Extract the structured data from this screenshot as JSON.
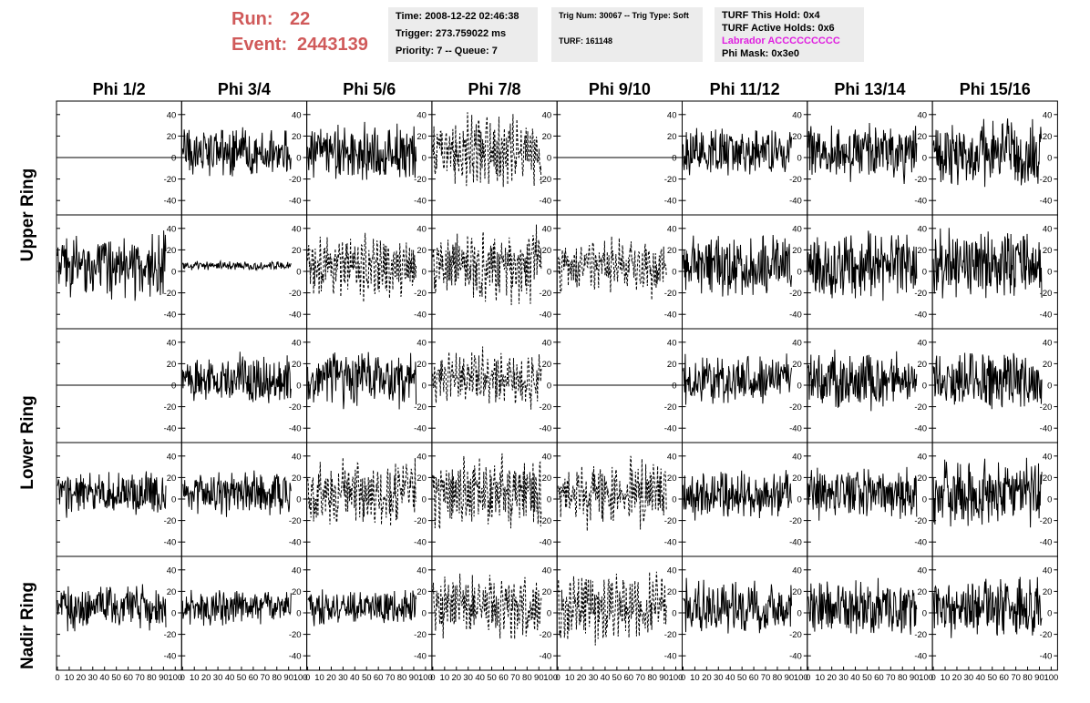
{
  "header": {
    "run_label": "Run:",
    "run_value": "22",
    "event_label": "Event:",
    "event_value": "2443139",
    "label_color": "#d05a5a"
  },
  "time_box": {
    "time": "Time: 2008-12-22 02:46:38",
    "trigger": "Trigger: 273.759022 ms",
    "priority": "Priority: 7 -- Queue: 7"
  },
  "trig_box": {
    "trig": "Trig Num: 30067 -- Trig Type: Soft",
    "turf": "TURF: 161148"
  },
  "turf_box": {
    "this_hold": "TURF This Hold: 0x4",
    "active_holds": "TURF Active Holds: 0x6",
    "labrador": "Labrador ACCCCCCCCC",
    "labrador_color": "#e020e0",
    "phi_mask": "Phi Mask: 0x3e0"
  },
  "chart_data": {
    "type": "line",
    "title": "",
    "columns": [
      "Phi 1/2",
      "Phi 3/4",
      "Phi 5/6",
      "Phi 7/8",
      "Phi 9/10",
      "Phi 11/12",
      "Phi 13/14",
      "Phi 15/16"
    ],
    "rows": [
      "Upper Ring",
      "Upper Ring",
      "Lower Ring",
      "Lower Ring",
      "Nadir Ring"
    ],
    "row_labels": [
      "Upper Ring",
      "Lower Ring",
      "Nadir Ring"
    ],
    "xlim": [
      0,
      100
    ],
    "ylim": [
      -50,
      50
    ],
    "x_ticks": [
      0,
      10,
      20,
      30,
      40,
      50,
      60,
      70,
      80,
      90,
      100
    ],
    "y_ticks": [
      -40,
      -20,
      0,
      20,
      40
    ],
    "x_tick_labels": [
      "0",
      "10",
      "20",
      "30",
      "40",
      "50",
      "60",
      "70",
      "80",
      "90",
      "100"
    ],
    "y_tick_labels": [
      "-40",
      "-20",
      "0",
      "20",
      "40"
    ],
    "note_amplitude_semantics": "each cell is a waveform trace; amp = approximate peak amplitude in mV-like units, flat = trace is a constant zero line, dashed = trace drawn with dashed style",
    "cells": [
      [
        {
          "style": "flat",
          "amp": 0
        },
        {
          "style": "solid",
          "amp": 22
        },
        {
          "style": "solid",
          "amp": 25
        },
        {
          "style": "dashed",
          "amp": 28
        },
        {
          "style": "flat",
          "amp": 0
        },
        {
          "style": "solid",
          "amp": 22
        },
        {
          "style": "solid",
          "amp": 25
        },
        {
          "style": "solid",
          "amp": 30
        }
      ],
      [
        {
          "style": "solid",
          "amp": 28
        },
        {
          "style": "solid",
          "amp": 4
        },
        {
          "style": "dashed",
          "amp": 25
        },
        {
          "style": "dashed",
          "amp": 32
        },
        {
          "style": "dashed",
          "amp": 22
        },
        {
          "style": "solid",
          "amp": 28
        },
        {
          "style": "solid",
          "amp": 30
        },
        {
          "style": "solid",
          "amp": 32
        }
      ],
      [
        {
          "style": "flat",
          "amp": 0
        },
        {
          "style": "solid",
          "amp": 22
        },
        {
          "style": "solid",
          "amp": 25
        },
        {
          "style": "dashed",
          "amp": 22
        },
        {
          "style": "flat",
          "amp": 0
        },
        {
          "style": "solid",
          "amp": 22
        },
        {
          "style": "solid",
          "amp": 25
        },
        {
          "style": "solid",
          "amp": 25
        }
      ],
      [
        {
          "style": "solid",
          "amp": 20
        },
        {
          "style": "solid",
          "amp": 20
        },
        {
          "style": "dashed",
          "amp": 28
        },
        {
          "style": "dashed",
          "amp": 30
        },
        {
          "style": "dashed",
          "amp": 25
        },
        {
          "style": "solid",
          "amp": 22
        },
        {
          "style": "solid",
          "amp": 22
        },
        {
          "style": "solid",
          "amp": 30
        }
      ],
      [
        {
          "style": "solid",
          "amp": 20
        },
        {
          "style": "solid",
          "amp": 15
        },
        {
          "style": "solid",
          "amp": 15
        },
        {
          "style": "dashed",
          "amp": 25
        },
        {
          "style": "dashed",
          "amp": 28
        },
        {
          "style": "solid",
          "amp": 25
        },
        {
          "style": "solid",
          "amp": 25
        },
        {
          "style": "solid",
          "amp": 28
        }
      ]
    ]
  }
}
